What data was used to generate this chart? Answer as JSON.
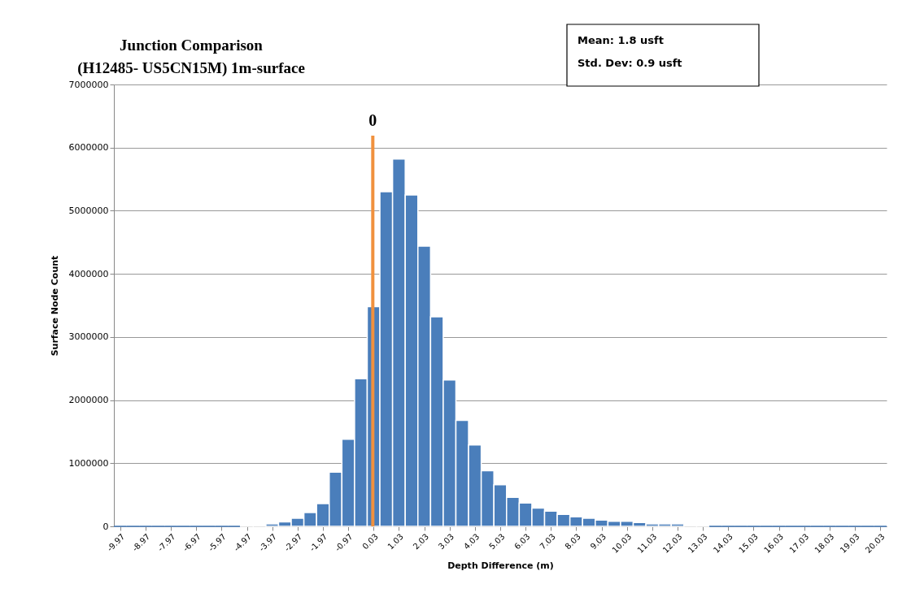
{
  "chart_data": {
    "type": "histogram",
    "title": "Junction Comparison",
    "subtitle": "(H12485- US5CN15M) 1m-surface",
    "xlabel": "Depth Difference (m)",
    "ylabel": "Surface Node Count",
    "annotations": [
      "Mean:      1.8 usft",
      "Std. Dev:  0.9 usft"
    ],
    "bins": [
      -10.22,
      -9.72,
      -9.22,
      -8.72,
      -8.22,
      -7.72,
      -7.22,
      -6.72,
      -6.22,
      -5.72,
      -5.22,
      -4.72,
      -4.22,
      -3.72,
      -3.22,
      -2.72,
      -2.22,
      -1.72,
      -1.22,
      -0.72,
      -0.22,
      0.28,
      0.78,
      1.28,
      1.78,
      2.28,
      2.78,
      3.28,
      3.78,
      4.28,
      4.78,
      5.28,
      5.78,
      6.28,
      6.78,
      7.28,
      7.78,
      8.28,
      8.78,
      9.28,
      9.78,
      10.28,
      10.78,
      11.28,
      11.78,
      12.28,
      12.78,
      13.28,
      13.78,
      14.28,
      14.78,
      15.28,
      15.78,
      16.28,
      16.78,
      17.28,
      17.78,
      18.28,
      18.78,
      19.28,
      19.78,
      20.28
    ],
    "values": [
      0,
      0,
      0,
      0,
      0,
      0,
      0,
      0,
      0,
      0,
      20000,
      20000,
      40000,
      70000,
      130000,
      220000,
      360000,
      860000,
      1380000,
      2340000,
      3480000,
      5300000,
      5820000,
      5250000,
      4440000,
      3320000,
      2320000,
      1680000,
      1290000,
      880000,
      660000,
      460000,
      370000,
      290000,
      240000,
      190000,
      150000,
      130000,
      100000,
      80000,
      80000,
      60000,
      40000,
      40000,
      40000,
      20000,
      20000,
      0,
      0,
      0,
      0,
      0,
      0,
      0,
      0,
      0,
      0,
      0,
      0,
      0,
      0
    ],
    "color": "#4a7ebb",
    "xlim": [
      -10.22,
      20.28
    ],
    "xticks": [
      -9.97,
      -8.97,
      -7.97,
      -6.97,
      -5.97,
      -4.97,
      -3.97,
      -2.97,
      -1.97,
      -0.97,
      0.03,
      1.03,
      2.03,
      3.03,
      4.03,
      5.03,
      6.03,
      7.03,
      8.03,
      9.03,
      10.03,
      11.03,
      12.03,
      13.03,
      14.03,
      15.03,
      16.03,
      17.03,
      18.03,
      19.03,
      20.03
    ],
    "ylim": [
      0,
      7000000
    ],
    "yticks": [
      0,
      1000000,
      2000000,
      3000000,
      4000000,
      5000000,
      6000000,
      7000000
    ],
    "grid": "y",
    "ref_lines": [
      {
        "axis": "x",
        "value": 0,
        "label": "0",
        "color": "#f0913e"
      }
    ]
  }
}
